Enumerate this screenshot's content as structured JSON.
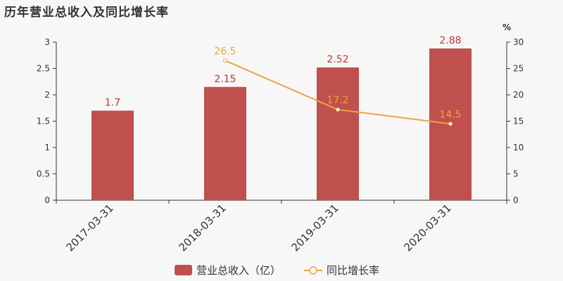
{
  "title": "历年营业总收入及同比增长率",
  "colors": {
    "bar": "#c0504d",
    "bar_label": "#c23531",
    "line": "#f0a143",
    "axis": "#333333",
    "bg": "#f7f7f7"
  },
  "chart_data": {
    "type": "bar",
    "categories": [
      "2017-03-31",
      "2018-03-31",
      "2019-03-31",
      "2020-03-31"
    ],
    "series": [
      {
        "name": "营业总收入（亿）",
        "type": "bar",
        "axis": "left",
        "values": [
          1.7,
          2.15,
          2.52,
          2.88
        ],
        "labels": [
          "1.7",
          "2.15",
          "2.52",
          "2.88"
        ]
      },
      {
        "name": "同比增长率",
        "type": "line",
        "axis": "right",
        "values": [
          null,
          26.5,
          17.2,
          14.5
        ],
        "labels": [
          "",
          "26.5",
          "17.2",
          "14.5"
        ]
      }
    ],
    "y_left": {
      "min": 0,
      "max": 3,
      "ticks": [
        "0",
        "0.5",
        "1",
        "1.5",
        "2",
        "2.5",
        "3"
      ]
    },
    "y_right": {
      "min": 0,
      "max": 30,
      "unit": "%",
      "ticks": [
        "0",
        "5",
        "10",
        "15",
        "20",
        "25",
        "30"
      ]
    },
    "legend": {
      "position": "bottom-center",
      "items": [
        "营业总收入（亿）",
        "同比增长率"
      ]
    }
  }
}
